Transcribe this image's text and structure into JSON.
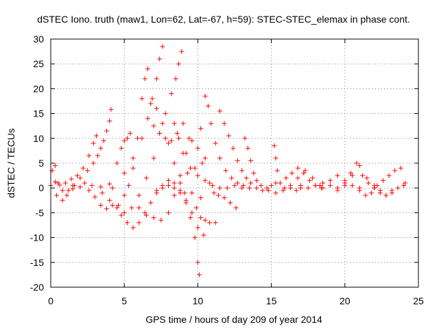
{
  "chart_data": {
    "type": "scatter",
    "title": "dSTEC Iono. truth (maw1, Lon=62, Lat=-67, h=59): STEC-STEC_elemax in phase cont.",
    "xlabel": "GPS time / hours of day 209 of year 2014",
    "ylabel": "dSTEC  / TECUs",
    "xlim": [
      0,
      25
    ],
    "ylim": [
      -20,
      30
    ],
    "xticks": [
      0,
      5,
      10,
      15,
      20,
      25
    ],
    "yticks": [
      -20,
      -15,
      -10,
      -5,
      0,
      5,
      10,
      15,
      20,
      25,
      30
    ],
    "grid": true,
    "marker": "plus",
    "color": "#ff0000",
    "series": [
      {
        "x": [
          0.0,
          0.3,
          0.6,
          1.0,
          1.4,
          1.8,
          2.2,
          2.6,
          2.9,
          3.1
        ],
        "y": [
          0.5,
          1.2,
          0.6,
          1.0,
          1.8,
          2.5,
          4.0,
          6.5,
          9.0,
          10.5
        ]
      },
      {
        "x": [
          0.1,
          0.3,
          0.5,
          0.8,
          1.1,
          1.5
        ],
        "y": [
          3.5,
          4.5,
          1.0,
          -0.5,
          -1.5,
          -0.2
        ]
      },
      {
        "x": [
          0.4,
          0.8,
          1.2,
          1.6,
          2.0
        ],
        "y": [
          -1.5,
          -2.5,
          -0.5,
          0.5,
          0.2
        ]
      },
      {
        "x": [
          1.5,
          2.0,
          2.5,
          2.9,
          3.2,
          3.4,
          3.6,
          3.8,
          4.0,
          4.1
        ],
        "y": [
          0.5,
          2.0,
          3.5,
          5.0,
          6.5,
          8.0,
          9.5,
          11.5,
          13.5,
          15.8
        ]
      },
      {
        "x": [
          2.3,
          2.6,
          3.0,
          3.4,
          3.8,
          4.2,
          4.6,
          5.0,
          5.3,
          5.6,
          5.9,
          6.2,
          6.4,
          6.6
        ],
        "y": [
          1.0,
          -0.5,
          -1.8,
          -3.5,
          -4.2,
          -3.5,
          -3.5,
          -1.5,
          0.5,
          4.0,
          10.0,
          18.0,
          22.0,
          24.0
        ]
      },
      {
        "x": [
          2.8,
          3.4,
          4.0,
          4.5,
          4.8,
          5.0,
          5.2,
          5.4
        ],
        "y": [
          0.5,
          0.2,
          0.8,
          5.0,
          8.0,
          9.5,
          10.0,
          11.0
        ]
      },
      {
        "x": [
          4.2,
          5.0,
          5.6,
          6.2,
          6.6,
          6.9,
          7.2,
          7.4,
          7.6
        ],
        "y": [
          0.0,
          3.0,
          6.0,
          10.0,
          14.0,
          18.0,
          22.0,
          26.0,
          28.5
        ]
      },
      {
        "x": [
          3.5,
          4.0,
          4.5,
          5.0,
          5.5,
          6.0,
          6.5,
          7.0,
          7.4,
          7.8,
          8.2,
          8.5,
          8.7,
          8.9
        ],
        "y": [
          -1.0,
          -2.5,
          -4.0,
          -5.0,
          -4.0,
          -1.5,
          2.0,
          6.0,
          11.0,
          15.0,
          19.0,
          22.0,
          25.0,
          27.5
        ]
      },
      {
        "x": [
          4.8,
          5.2,
          5.6,
          6.0,
          6.4,
          6.8,
          7.2,
          7.6,
          8.0,
          8.4,
          8.8,
          9.1
        ],
        "y": [
          -5.5,
          -7.0,
          -8.0,
          -7.0,
          -5.0,
          -3.0,
          -1.0,
          0.5,
          1.5,
          1.0,
          -0.5,
          -1.0
        ]
      },
      {
        "x": [
          6.0,
          6.5,
          7.0,
          7.5,
          8.0,
          8.4,
          8.8,
          9.2,
          9.6,
          10.0,
          10.3
        ],
        "y": [
          -4.0,
          -5.5,
          -6.0,
          -6.5,
          -5.0,
          -1.5,
          2.5,
          7.0,
          9.5,
          8.0,
          5.0
        ]
      },
      {
        "x": [
          6.8,
          7.2,
          7.6,
          8.0,
          8.4,
          8.8,
          9.2,
          9.5,
          9.8,
          10.0,
          10.1
        ],
        "y": [
          17.0,
          16.0,
          13.0,
          9.0,
          5.0,
          1.0,
          -2.5,
          -6.0,
          -10.0,
          -15.0,
          -17.5
        ]
      },
      {
        "x": [
          7.0,
          7.4,
          7.8,
          8.2,
          8.6,
          9.0,
          9.4,
          9.8,
          10.2
        ],
        "y": [
          12.5,
          11.0,
          10.0,
          9.5,
          11.0,
          13.0,
          10.0,
          4.0,
          -2.0
        ]
      },
      {
        "x": [
          8.4,
          8.7,
          9.0,
          9.3,
          9.6,
          9.9,
          10.2,
          10.5,
          10.8,
          11.2
        ],
        "y": [
          13.0,
          10.0,
          7.0,
          3.0,
          -1.0,
          -4.0,
          -6.0,
          -6.5,
          -7.0,
          -7.0
        ]
      },
      {
        "x": [
          7.2,
          7.6,
          8.0,
          8.4,
          8.8,
          9.2,
          9.6,
          10.0,
          10.4
        ],
        "y": [
          -0.5,
          0.0,
          0.5,
          0.0,
          -1.0,
          -3.0,
          -5.0,
          -8.0,
          -9.5
        ]
      },
      {
        "x": [
          10.2,
          10.5,
          10.8,
          11.1,
          11.4,
          11.8,
          12.2,
          12.6
        ],
        "y": [
          12.0,
          6.0,
          1.0,
          -1.0,
          -1.5,
          -2.0,
          -3.0,
          -4.0
        ]
      },
      {
        "x": [
          10.5,
          10.7,
          10.9,
          11.2,
          11.5,
          11.9,
          12.3,
          12.7,
          13.1,
          13.5
        ],
        "y": [
          18.5,
          16.5,
          13.0,
          9.0,
          6.0,
          3.5,
          2.0,
          1.0,
          0.5,
          0.0
        ]
      },
      {
        "x": [
          11.5,
          11.8,
          12.1,
          12.4,
          12.7,
          13.0,
          13.3,
          13.6,
          14.0,
          14.4
        ],
        "y": [
          15.5,
          13.0,
          10.5,
          8.0,
          5.5,
          3.5,
          2.0,
          1.0,
          0.0,
          -0.5
        ]
      },
      {
        "x": [
          9.5,
          10.0,
          10.5,
          11.0,
          11.5,
          12.0,
          12.5,
          13.0
        ],
        "y": [
          4.0,
          2.5,
          1.5,
          0.5,
          0.0,
          0.0,
          0.5,
          0.0
        ]
      },
      {
        "x": [
          13.2,
          13.4,
          13.6,
          13.8,
          14.0,
          14.3,
          14.7,
          15.0,
          15.3
        ],
        "y": [
          10.0,
          8.0,
          5.5,
          3.0,
          1.5,
          0.5,
          0.0,
          0.5,
          1.0
        ]
      },
      {
        "x": [
          15.2,
          15.3,
          15.4,
          15.6,
          15.9,
          16.3,
          16.7,
          17.0
        ],
        "y": [
          8.5,
          6.0,
          3.5,
          1.0,
          0.0,
          0.0,
          -0.5,
          0.0
        ]
      },
      {
        "x": [
          14.8,
          15.3,
          15.8,
          16.3,
          16.8,
          17.3,
          17.8,
          18.3
        ],
        "y": [
          -0.5,
          -1.0,
          -0.5,
          0.5,
          2.0,
          3.5,
          2.0,
          0.5
        ]
      },
      {
        "x": [
          16.0,
          16.4,
          16.8,
          17.2,
          17.6,
          18.0,
          18.4
        ],
        "y": [
          2.0,
          3.0,
          4.0,
          3.0,
          1.5,
          0.5,
          0.0
        ]
      },
      {
        "x": [
          17.0,
          17.5,
          18.0,
          18.5,
          19.0,
          19.5,
          20.0,
          20.5,
          21.0
        ],
        "y": [
          0.5,
          0.0,
          0.5,
          1.0,
          1.5,
          2.5,
          1.5,
          0.5,
          0.0
        ]
      },
      {
        "x": [
          18.5,
          19.0,
          19.5,
          20.0,
          20.5,
          21.0,
          21.5,
          22.0
        ],
        "y": [
          0.0,
          0.5,
          0.0,
          1.0,
          2.5,
          4.5,
          2.0,
          0.0
        ]
      },
      {
        "x": [
          19.5,
          20.0,
          20.4,
          20.8,
          21.2,
          21.6,
          22.0,
          22.4,
          22.8,
          23.2
        ],
        "y": [
          -0.5,
          0.5,
          3.0,
          5.0,
          2.5,
          1.0,
          0.0,
          -1.0,
          -1.5,
          -1.0
        ]
      },
      {
        "x": [
          21.0,
          21.4,
          21.8,
          22.2,
          22.6,
          23.0,
          23.4,
          23.8,
          24.1
        ],
        "y": [
          -0.5,
          -1.5,
          -1.0,
          0.5,
          1.5,
          2.5,
          3.5,
          4.0,
          1.0
        ]
      },
      {
        "x": [
          22.0,
          22.4,
          22.8,
          23.2,
          23.6,
          24.0
        ],
        "y": [
          0.5,
          -0.5,
          -1.5,
          -0.5,
          0.0,
          0.5
        ]
      }
    ]
  }
}
